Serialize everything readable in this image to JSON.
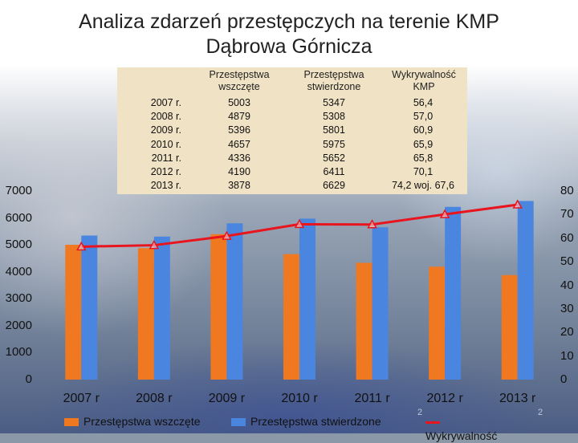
{
  "title_line1": "Analiza zdarzeń przestępczych na terenie KMP",
  "title_line2": "Dąbrowa Górnicza",
  "table": {
    "headers": [
      "Przestępstwa wszczęte",
      "Przestępstwa stwierdzone",
      "Wykrywalność KMP"
    ],
    "rows": [
      {
        "year": "2007 r.",
        "wszczete": "5003",
        "stwierdzone": "5347",
        "wykrywalnosc": "56,4"
      },
      {
        "year": "2008 r.",
        "wszczete": "4879",
        "stwierdzone": "5308",
        "wykrywalnosc": "57,0"
      },
      {
        "year": "2009 r.",
        "wszczete": "5396",
        "stwierdzone": "5801",
        "wykrywalnosc": "60,9"
      },
      {
        "year": "2010 r.",
        "wszczete": "4657",
        "stwierdzone": "5975",
        "wykrywalnosc": "65,9"
      },
      {
        "year": "2011 r.",
        "wszczete": "4336",
        "stwierdzone": "5652",
        "wykrywalnosc": "65,8"
      },
      {
        "year": "2012 r.",
        "wszczete": "4190",
        "stwierdzone": "6411",
        "wykrywalnosc": "70,1"
      },
      {
        "year": "2013 r.",
        "wszczete": "3878",
        "stwierdzone": "6629",
        "wykrywalnosc": "74,2 woj. 67,6"
      }
    ]
  },
  "chart_data": {
    "type": "bar",
    "categories": [
      "2007 r",
      "2008 r",
      "2009 r",
      "2010 r",
      "2011 r",
      "2012 r",
      "2013 r"
    ],
    "series": [
      {
        "name": "Przestępstwa wszczęte",
        "type": "bar",
        "axis": "left",
        "color": "#f07820",
        "values": [
          5003,
          4879,
          5396,
          4657,
          4336,
          4190,
          3878
        ]
      },
      {
        "name": "Przestępstwa stwierdzone",
        "type": "bar",
        "axis": "left",
        "color": "#4a86e0",
        "values": [
          5347,
          5308,
          5801,
          5975,
          5652,
          6411,
          6629
        ]
      },
      {
        "name": "Wykrywalność",
        "type": "line",
        "axis": "right",
        "color": "#e8141e",
        "values": [
          56.4,
          57.0,
          60.9,
          65.9,
          65.8,
          70.1,
          74.2
        ]
      }
    ],
    "ylim_left": [
      0,
      7000
    ],
    "yticks_left": [
      "0",
      "1000",
      "2000",
      "3000",
      "4000",
      "5000",
      "6000",
      "7000"
    ],
    "ylim_right": [
      0,
      80
    ],
    "yticks_right": [
      "0",
      "10",
      "20",
      "30",
      "40",
      "50",
      "60",
      "70",
      "80"
    ],
    "legend_position": "bottom",
    "grid": false
  },
  "page_numbers": [
    "2",
    "2"
  ]
}
